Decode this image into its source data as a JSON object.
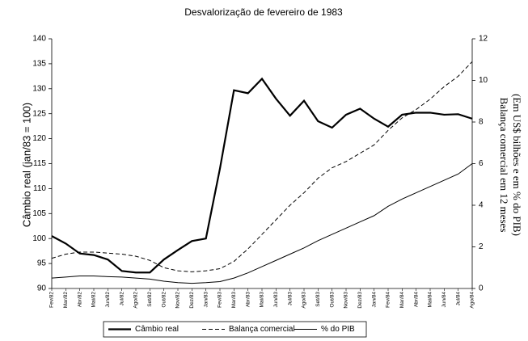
{
  "chart_data": {
    "type": "line",
    "title": "Desvalorização de fevereiro de 1983",
    "ylabel": "Câmbio real (jan/83 = 100)",
    "y2label": [
      "Balança comercial em 12 meses",
      "(Em US$ bilhões e em % do PIB)"
    ],
    "categories": [
      "Fev/82",
      "Mar/82",
      "Abr/82",
      "Mai/82",
      "Jun/82",
      "Jul/82",
      "Ago/82",
      "Set/82",
      "Out/82",
      "Nov/82",
      "Dez/82",
      "Jan/83",
      "Fev/83",
      "Mar/83",
      "Abr/83",
      "Mai/83",
      "Jun/83",
      "Jul/83",
      "Ago/83",
      "Set/83",
      "Out/83",
      "Nov/83",
      "Dez/83",
      "Jan/84",
      "Fev/84",
      "Mar/84",
      "Abr/84",
      "Mai/84",
      "Jun/84",
      "Jul/84",
      "Ago/84"
    ],
    "ylim": [
      90,
      140
    ],
    "yticks": [
      90,
      95,
      100,
      105,
      110,
      115,
      120,
      125,
      130,
      135,
      140
    ],
    "y2lim": [
      0,
      12
    ],
    "y2ticks": [
      0,
      2,
      4,
      6,
      8,
      10,
      12
    ],
    "legend": "bottom",
    "series": [
      {
        "name": "Câmbio real",
        "color": "#000000",
        "line_style": "solid",
        "line_width": 2.2,
        "values": [
          100.5,
          99,
          97,
          96.7,
          95.8,
          93.5,
          93.2,
          93.2,
          95.8,
          97.7,
          99.5,
          100,
          114,
          129.7,
          129.1,
          132,
          128,
          124.6,
          127.6,
          123.5,
          122.2,
          124.8,
          126,
          124,
          122.4,
          124.8,
          125.2,
          125.2,
          124.8,
          124.9,
          124
        ]
      },
      {
        "name": "Balança comercial",
        "color": "#000000",
        "line_style": "dashed",
        "line_width": 1,
        "axis": "y2",
        "values": [
          1.45,
          1.65,
          1.75,
          1.75,
          1.7,
          1.65,
          1.55,
          1.35,
          1.0,
          0.85,
          0.8,
          0.85,
          0.95,
          1.3,
          1.9,
          2.6,
          3.3,
          4.0,
          4.6,
          5.3,
          5.8,
          6.1,
          6.5,
          6.9,
          7.6,
          8.2,
          8.6,
          9.1,
          9.7,
          10.2,
          10.9
        ]
      },
      {
        "name": "% do PIB",
        "color": "#000000",
        "line_style": "solid",
        "line_width": 1,
        "axis": "y2",
        "values": [
          0.5,
          0.55,
          0.6,
          0.6,
          0.57,
          0.55,
          0.5,
          0.45,
          0.35,
          0.28,
          0.25,
          0.28,
          0.33,
          0.5,
          0.75,
          1.05,
          1.35,
          1.65,
          1.95,
          2.3,
          2.6,
          2.9,
          3.2,
          3.5,
          3.95,
          4.3,
          4.6,
          4.9,
          5.2,
          5.5,
          6.0
        ]
      }
    ]
  }
}
